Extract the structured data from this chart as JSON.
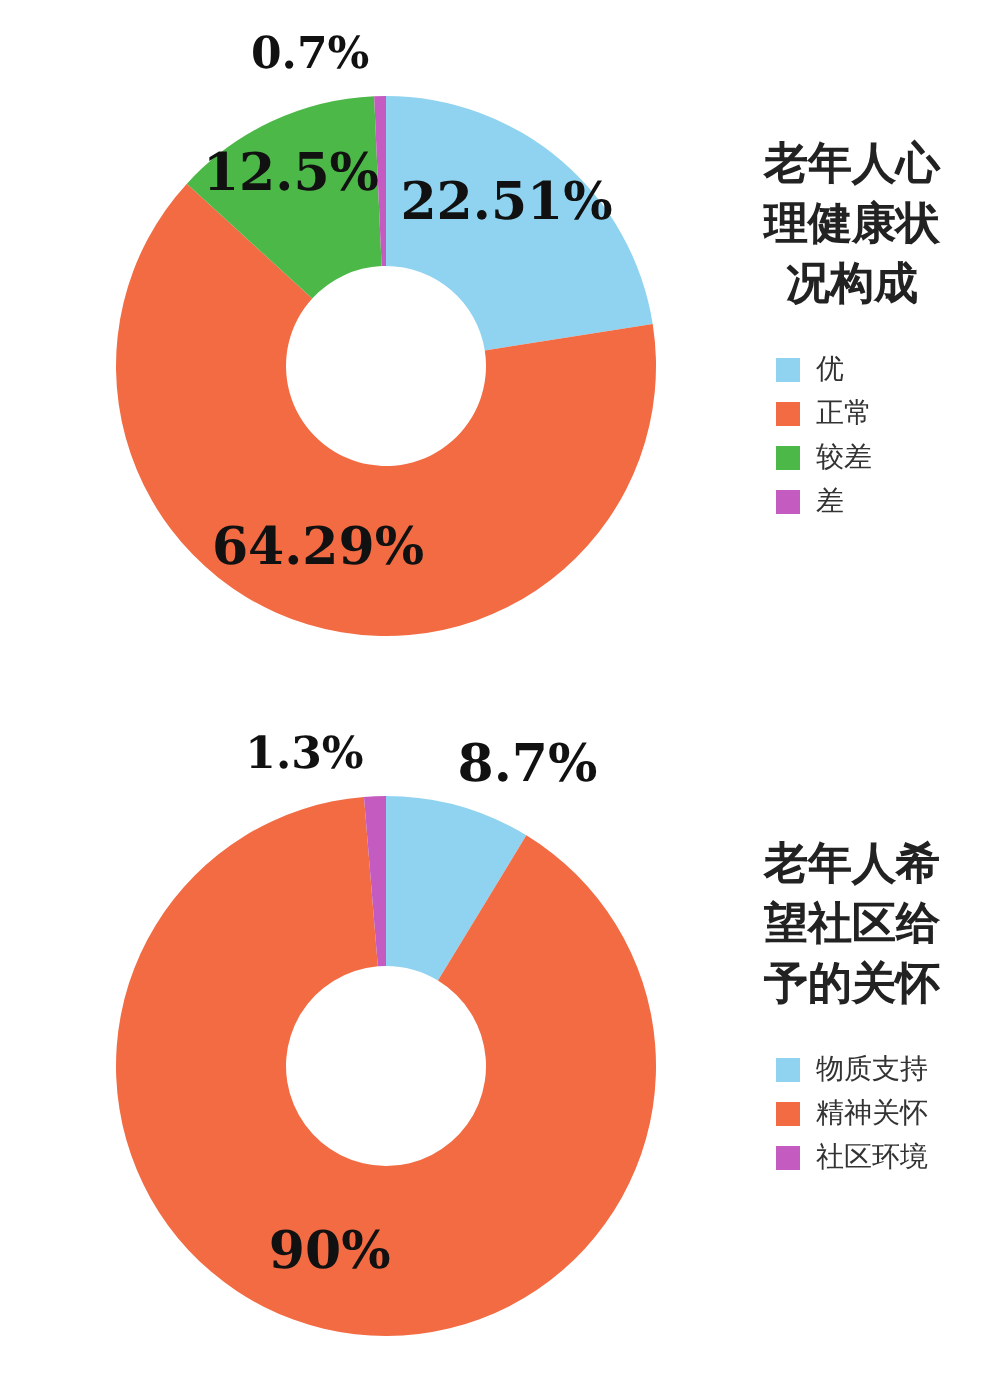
{
  "chart_data": [
    {
      "type": "donut",
      "title": "老年人心理健康状况构成",
      "categories": [
        "优",
        "正常",
        "较差",
        "差"
      ],
      "values": [
        22.51,
        64.29,
        12.5,
        0.7
      ],
      "value_labels": [
        "22.51%",
        "64.29%",
        "12.5%",
        "0.7%"
      ],
      "colors": [
        "#8fd3f0",
        "#f26b43",
        "#4cb848",
        "#c45bc0"
      ],
      "legend": "right"
    },
    {
      "type": "donut",
      "title": "老年人希望社区给予的关怀",
      "categories": [
        "物质支持",
        "精神关怀",
        "社区环境"
      ],
      "values": [
        8.7,
        90,
        1.3
      ],
      "value_labels": [
        "8.7%",
        "90%",
        "1.3%"
      ],
      "colors": [
        "#8fd3f0",
        "#f26b43",
        "#c45bc0"
      ],
      "legend": "right"
    }
  ]
}
